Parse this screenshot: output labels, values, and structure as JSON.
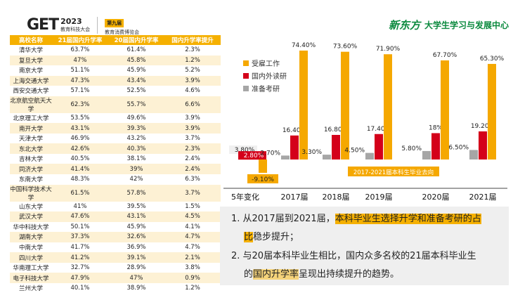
{
  "header": {
    "logo_mark": "GET",
    "logo_year": "2023",
    "logo_sub": "教育科技大会",
    "badge": "第九届",
    "expo": "教育消费博览会",
    "brand_logo": "新东方",
    "brand_text": "大学生学习与发展中心"
  },
  "table": {
    "headers": [
      "高校名称",
      "21届国内升学率",
      "20届国内升学率",
      "国内升学率提升"
    ],
    "rows": [
      [
        "清华大学",
        "63.7%",
        "61.4%",
        "2.3%"
      ],
      [
        "复旦大学",
        "47%",
        "45.8%",
        "1.2%"
      ],
      [
        "南京大学",
        "51.1%",
        "45.9%",
        "5.2%"
      ],
      [
        "上海交通大学",
        "47.3%",
        "43.4%",
        "3.9%"
      ],
      [
        "西安交通大学",
        "57.1%",
        "52.5%",
        "4.6%"
      ],
      [
        "北京航空航天大学",
        "62.3%",
        "55.7%",
        "6.6%"
      ],
      [
        "北京理工大学",
        "53.5%",
        "49.6%",
        "3.9%"
      ],
      [
        "南开大学",
        "43.1%",
        "39.3%",
        "3.9%"
      ],
      [
        "天津大学",
        "46.9%",
        "43.2%",
        "3.7%"
      ],
      [
        "东北大学",
        "42.6%",
        "40.3%",
        "2.3%"
      ],
      [
        "吉林大学",
        "40.5%",
        "38.1%",
        "2.4%"
      ],
      [
        "同济大学",
        "41.4%",
        "39%",
        "2.4%"
      ],
      [
        "东南大学",
        "48.3%",
        "42%",
        "6.3%"
      ],
      [
        "中国科学技术大学",
        "61.5%",
        "57.8%",
        "3.7%"
      ],
      [
        "山东大学",
        "41%",
        "39.5%",
        "1.5%"
      ],
      [
        "武汉大学",
        "47.6%",
        "43.1%",
        "4.5%"
      ],
      [
        "华中科技大学",
        "50.1%",
        "45.9%",
        "4.1%"
      ],
      [
        "湖南大学",
        "37.3%",
        "32.6%",
        "4.7%"
      ],
      [
        "中南大学",
        "41.7%",
        "36.9%",
        "4.7%"
      ],
      [
        "四川大学",
        "41.2%",
        "39.1%",
        "2.1%"
      ],
      [
        "华南理工大学",
        "32.7%",
        "28.9%",
        "3.8%"
      ],
      [
        "电子科技大学",
        "47.9%",
        "47%",
        "0.9%"
      ],
      [
        "兰州大学",
        "40.1%",
        "38.9%",
        "1.2%"
      ]
    ]
  },
  "chart_data": {
    "type": "bar",
    "title": "2017-2021届本科生毕业去向",
    "categories": [
      "5年变化",
      "2017届",
      "2018届",
      "2019届",
      "2020届",
      "2021届"
    ],
    "series": [
      {
        "name": "受雇工作",
        "color": "#f5a800",
        "values": [
          -9.1,
          74.4,
          73.6,
          71.9,
          67.7,
          65.3
        ],
        "labels": [
          "-9.10%",
          "74.40%",
          "73.60%",
          "71.90%",
          "67.70%",
          "65.30%"
        ]
      },
      {
        "name": "国内外读研",
        "color": "#d4001a",
        "values": [
          2.8,
          16.4,
          16.8,
          17.4,
          18,
          19.2
        ],
        "labels": [
          "2.80%",
          "16.40%",
          "16.80%",
          "17.40%",
          "18%",
          "19.20%"
        ]
      },
      {
        "name": "准备考研",
        "color": "#a6a6a6",
        "values": [
          3.8,
          2.7,
          3.3,
          4.5,
          5.8,
          6.5
        ],
        "labels": [
          "3.80%",
          "2.70%",
          "3.30%",
          "4.50%",
          "5.80%",
          "6.50%"
        ]
      }
    ],
    "legend_position": "top-left",
    "ylim": [
      -10,
      80
    ]
  },
  "notes": {
    "n1_pre": "1. 从2017届到2021届，",
    "n1_hl": "本科毕业生选择升学和准备考研的占",
    "n1_hl2": "比",
    "n1_post": "稳步提升；",
    "n2_pre": "2. 与20届本科毕业生相比，国内众多名校的21届本科毕业生",
    "n2_line2_pre": "的",
    "n2_hl": "国内升学率",
    "n2_post": "呈现出持续提升的趋势。"
  }
}
